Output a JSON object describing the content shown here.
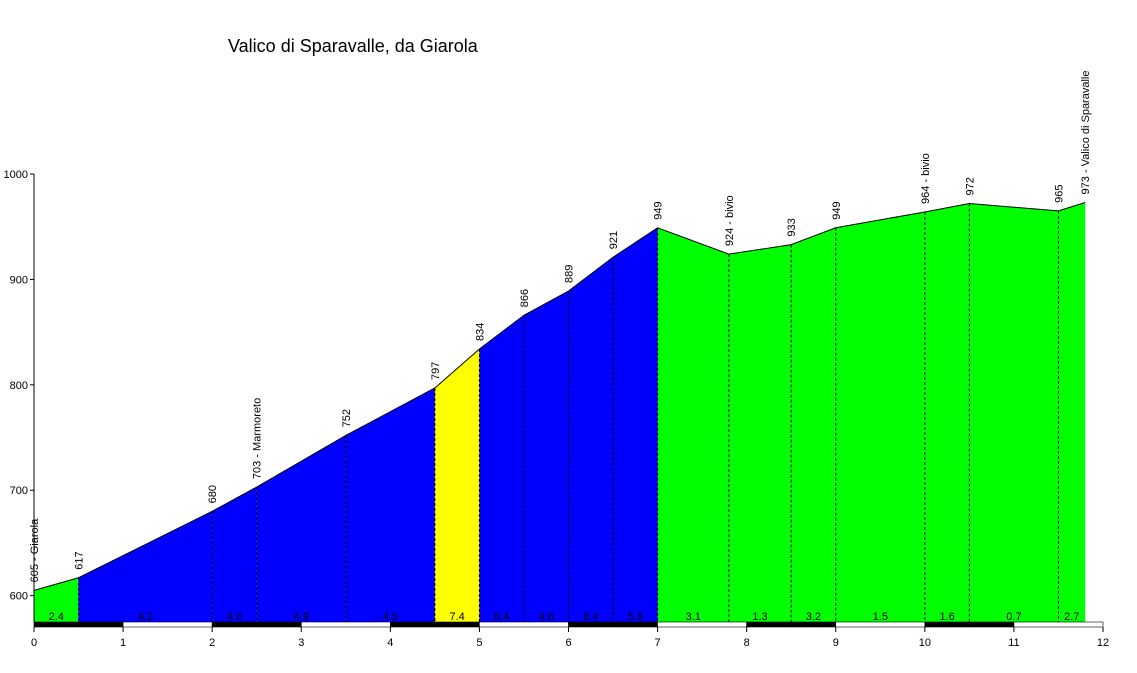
{
  "chart_data": {
    "type": "area",
    "title": "Valico di Sparavalle, da Giarola",
    "xlabel": "",
    "ylabel": "",
    "xlim": [
      0,
      12
    ],
    "ylim": [
      575,
      1000
    ],
    "x_ticks": [
      "0",
      "1",
      "2",
      "3",
      "4",
      "5",
      "6",
      "7",
      "8",
      "9",
      "10",
      "11",
      "12"
    ],
    "y_ticks": [
      "600",
      "700",
      "800",
      "900",
      "1000"
    ],
    "profile": [
      {
        "x": 0,
        "y": 605
      },
      {
        "x": 0.5,
        "y": 617
      },
      {
        "x": 2,
        "y": 680
      },
      {
        "x": 2.5,
        "y": 703
      },
      {
        "x": 3.5,
        "y": 752
      },
      {
        "x": 4.5,
        "y": 797
      },
      {
        "x": 5,
        "y": 834
      },
      {
        "x": 5.5,
        "y": 866
      },
      {
        "x": 6,
        "y": 889
      },
      {
        "x": 6.5,
        "y": 921
      },
      {
        "x": 7,
        "y": 949
      },
      {
        "x": 7.8,
        "y": 924
      },
      {
        "x": 8.5,
        "y": 933
      },
      {
        "x": 9,
        "y": 949
      },
      {
        "x": 10,
        "y": 964
      },
      {
        "x": 10.5,
        "y": 972
      },
      {
        "x": 11.5,
        "y": 965
      },
      {
        "x": 11.8,
        "y": 973
      }
    ],
    "annotations": [
      {
        "x": 0,
        "y": 605,
        "text": "605 - Giarola"
      },
      {
        "x": 0.5,
        "y": 617,
        "text": "617"
      },
      {
        "x": 2,
        "y": 680,
        "text": "680"
      },
      {
        "x": 2.5,
        "y": 703,
        "text": "703 - Marmoreto"
      },
      {
        "x": 3.5,
        "y": 752,
        "text": "752"
      },
      {
        "x": 4.5,
        "y": 797,
        "text": "797"
      },
      {
        "x": 5,
        "y": 834,
        "text": "834"
      },
      {
        "x": 5.5,
        "y": 866,
        "text": "866"
      },
      {
        "x": 6,
        "y": 889,
        "text": "889"
      },
      {
        "x": 6.5,
        "y": 921,
        "text": "921"
      },
      {
        "x": 7,
        "y": 949,
        "text": "949"
      },
      {
        "x": 7.8,
        "y": 924,
        "text": "924 - bivio"
      },
      {
        "x": 8.5,
        "y": 933,
        "text": "933"
      },
      {
        "x": 9,
        "y": 949,
        "text": "949"
      },
      {
        "x": 10,
        "y": 964,
        "text": "964 - bivio"
      },
      {
        "x": 10.5,
        "y": 972,
        "text": "972"
      },
      {
        "x": 11.5,
        "y": 965,
        "text": "965"
      },
      {
        "x": 11.8,
        "y": 973,
        "text": "973 - Valico di Sparavalle"
      }
    ],
    "segments": [
      {
        "x0": 0,
        "x1": 0.5,
        "color": "#00ff00",
        "grade": "2.4"
      },
      {
        "x0": 0.5,
        "x1": 2,
        "color": "#0000ff",
        "grade": "4.2"
      },
      {
        "x0": 2,
        "x1": 2.5,
        "color": "#0000ff",
        "grade": "4.6"
      },
      {
        "x0": 2.5,
        "x1": 3.5,
        "color": "#0000ff",
        "grade": "4.9"
      },
      {
        "x0": 3.5,
        "x1": 4.5,
        "color": "#0000ff",
        "grade": "4.5"
      },
      {
        "x0": 4.5,
        "x1": 5,
        "color": "#ffff00",
        "grade": "7.4"
      },
      {
        "x0": 5,
        "x1": 5.5,
        "color": "#0000ff",
        "grade": "6.4"
      },
      {
        "x0": 5.5,
        "x1": 6,
        "color": "#0000ff",
        "grade": "4.6"
      },
      {
        "x0": 6,
        "x1": 6.5,
        "color": "#0000ff",
        "grade": "6.4"
      },
      {
        "x0": 6.5,
        "x1": 7,
        "color": "#0000ff",
        "grade": "5.6"
      },
      {
        "x0": 7,
        "x1": 7.8,
        "color": "#00ff00",
        "grade": "3.1"
      },
      {
        "x0": 7.8,
        "x1": 8.5,
        "color": "#00ff00",
        "grade": "1.3"
      },
      {
        "x0": 8.5,
        "x1": 9,
        "color": "#00ff00",
        "grade": "3.2"
      },
      {
        "x0": 9,
        "x1": 10,
        "color": "#00ff00",
        "grade": "1.5"
      },
      {
        "x0": 10,
        "x1": 10.5,
        "color": "#00ff00",
        "grade": "1.6"
      },
      {
        "x0": 10.5,
        "x1": 11.5,
        "color": "#00ff00",
        "grade": "0.7"
      },
      {
        "x0": 11.5,
        "x1": 11.8,
        "color": "#00ff00",
        "grade": "2.7"
      }
    ],
    "grid": false,
    "legend": "none"
  }
}
